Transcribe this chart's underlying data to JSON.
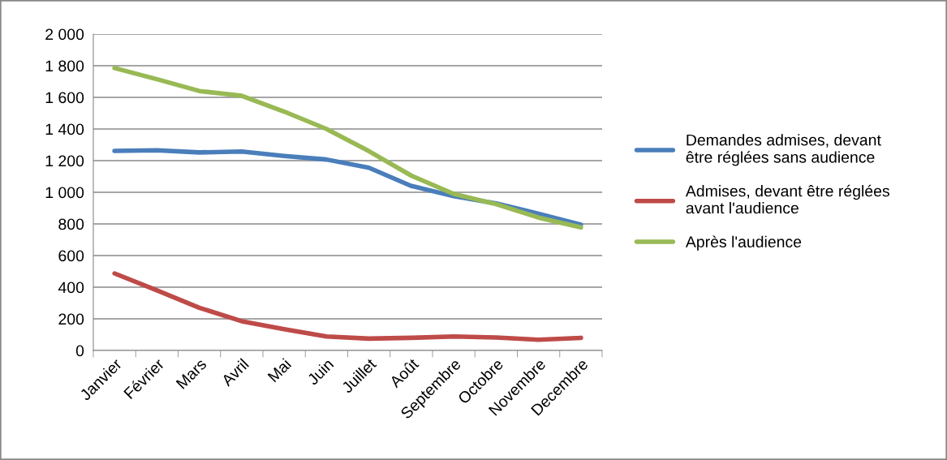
{
  "chart_data": {
    "type": "line",
    "categories": [
      "Janvier",
      "Février",
      "Mars",
      "Avril",
      "Mai",
      "Juin",
      "Juillet",
      "Août",
      "Septembre",
      "Octobre",
      "Novembre",
      "Decembre"
    ],
    "series": [
      {
        "name": "Demandes admises, devant être réglées sans audience",
        "color": "#4a7ebb",
        "values": [
          1262,
          1265,
          1252,
          1258,
          1230,
          1207,
          1155,
          1040,
          975,
          930,
          865,
          795
        ]
      },
      {
        "name": "Admises, devant être réglées avant l'audience",
        "color": "#be4b48",
        "values": [
          487,
          380,
          270,
          185,
          135,
          88,
          75,
          80,
          88,
          82,
          68,
          80
        ]
      },
      {
        "name": "Après l'audience",
        "color": "#98b954",
        "values": [
          1785,
          1715,
          1640,
          1610,
          1510,
          1400,
          1260,
          1105,
          990,
          925,
          840,
          778
        ]
      }
    ],
    "ylim": [
      0,
      2000
    ],
    "yticks": [
      0,
      {
        "value": 200,
        "label": "200"
      },
      {
        "value": 400,
        "label": "400"
      },
      {
        "value": 600,
        "label": "600"
      },
      {
        "value": 800,
        "label": "800"
      },
      {
        "value": 1000,
        "label": "1 000"
      },
      {
        "value": 1200,
        "label": "1 200"
      },
      {
        "value": 1400,
        "label": "1 400"
      },
      {
        "value": 1600,
        "label": "1 600"
      },
      {
        "value": 1800,
        "label": "1 800"
      },
      {
        "value": 2000,
        "label": "2 000"
      }
    ],
    "grid": "y",
    "legend": "right",
    "marker": "none",
    "line_style": "solid"
  }
}
